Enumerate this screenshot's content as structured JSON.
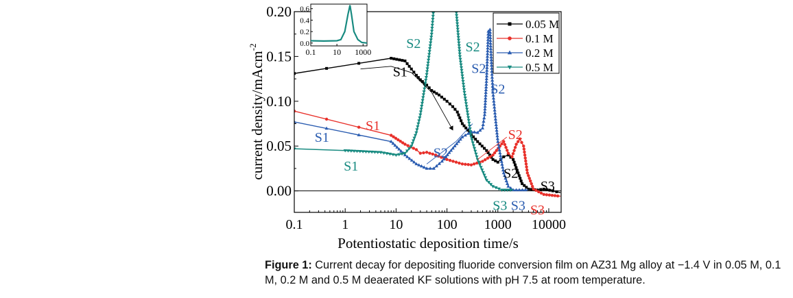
{
  "chart_data": {
    "type": "line",
    "xlabel": "Potentiostatic deposition time/s",
    "ylabel": "current density/mAcm",
    "ylabel_sup": "-2",
    "xscale": "log",
    "xlim": [
      0.1,
      17500
    ],
    "ylim": [
      -0.024,
      0.2
    ],
    "xticks": [
      0.1,
      1,
      10,
      100,
      1000,
      10000
    ],
    "xtick_labels": [
      "0.1",
      "1",
      "10",
      "100",
      "1000",
      "10000"
    ],
    "yticks": [
      0,
      0.05,
      0.1,
      0.15,
      0.2
    ],
    "ytick_labels": [
      "0.00",
      "0.05",
      "0.10",
      "0.15",
      "0.20"
    ],
    "zero_line": true,
    "legend_position": "top-right",
    "series": [
      {
        "name": "0.05 M",
        "color": "#000000",
        "marker": "square",
        "points": [
          [
            0.1,
            0.131
          ],
          [
            8,
            0.148
          ],
          [
            15,
            0.145
          ],
          [
            20,
            0.136
          ],
          [
            25,
            0.129
          ],
          [
            30,
            0.124
          ],
          [
            40,
            0.118
          ],
          [
            50,
            0.112
          ],
          [
            70,
            0.107
          ],
          [
            100,
            0.1
          ],
          [
            130,
            0.094
          ],
          [
            160,
            0.088
          ],
          [
            200,
            0.075
          ],
          [
            300,
            0.063
          ],
          [
            400,
            0.055
          ],
          [
            600,
            0.045
          ],
          [
            800,
            0.035
          ],
          [
            1000,
            0.032
          ],
          [
            1300,
            0.038
          ],
          [
            1600,
            0.04
          ],
          [
            2000,
            0.035
          ],
          [
            2500,
            0.02
          ],
          [
            3000,
            0.008
          ],
          [
            4000,
            0.002
          ],
          [
            6000,
            0.001
          ],
          [
            8000,
            0.002
          ],
          [
            12000,
            0.0
          ],
          [
            17000,
            -0.002
          ]
        ]
      },
      {
        "name": "0.1 M",
        "color": "#e8302a",
        "marker": "circle",
        "points": [
          [
            0.1,
            0.089
          ],
          [
            8,
            0.062
          ],
          [
            15,
            0.052
          ],
          [
            25,
            0.046
          ],
          [
            30,
            0.042
          ],
          [
            40,
            0.043
          ],
          [
            60,
            0.04
          ],
          [
            100,
            0.035
          ],
          [
            200,
            0.03
          ],
          [
            300,
            0.029
          ],
          [
            500,
            0.033
          ],
          [
            800,
            0.04
          ],
          [
            1100,
            0.05
          ],
          [
            1300,
            0.055
          ],
          [
            1600,
            0.042
          ],
          [
            1900,
            0.038
          ],
          [
            2300,
            0.052
          ],
          [
            2700,
            0.058
          ],
          [
            3200,
            0.05
          ],
          [
            3800,
            0.02
          ],
          [
            5000,
            0.002
          ],
          [
            8000,
            -0.004
          ],
          [
            17000,
            -0.006
          ]
        ]
      },
      {
        "name": "0.2 M",
        "color": "#2a5cb0",
        "marker": "triangle-up",
        "points": [
          [
            0.1,
            0.077
          ],
          [
            8,
            0.055
          ],
          [
            15,
            0.04
          ],
          [
            25,
            0.03
          ],
          [
            40,
            0.025
          ],
          [
            55,
            0.025
          ],
          [
            80,
            0.033
          ],
          [
            120,
            0.045
          ],
          [
            200,
            0.06
          ],
          [
            300,
            0.066
          ],
          [
            400,
            0.065
          ],
          [
            500,
            0.07
          ],
          [
            550,
            0.085
          ],
          [
            600,
            0.125
          ],
          [
            650,
            0.178
          ],
          [
            700,
            0.18
          ],
          [
            750,
            0.14
          ],
          [
            800,
            0.11
          ],
          [
            900,
            0.08
          ],
          [
            1000,
            0.055
          ],
          [
            1300,
            0.02
          ],
          [
            1600,
            0.005
          ],
          [
            2000,
            0.001
          ],
          [
            4000,
            0.001
          ]
        ]
      },
      {
        "name": "0.5 M",
        "color": "#178a80",
        "marker": "triangle-down",
        "points": [
          [
            0.1,
            0.047
          ],
          [
            1,
            0.045
          ],
          [
            5,
            0.043
          ],
          [
            10,
            0.04
          ],
          [
            15,
            0.042
          ],
          [
            20,
            0.05
          ],
          [
            25,
            0.065
          ],
          [
            30,
            0.085
          ],
          [
            40,
            0.13
          ],
          [
            50,
            0.175
          ],
          [
            55,
            0.205
          ],
          [
            150,
            0.205
          ],
          [
            180,
            0.15
          ],
          [
            220,
            0.11
          ],
          [
            300,
            0.06
          ],
          [
            400,
            0.035
          ],
          [
            600,
            0.012
          ],
          [
            800,
            0.005
          ],
          [
            1200,
            0.001
          ],
          [
            2000,
            0.001
          ]
        ]
      }
    ],
    "annotations": [
      {
        "text": "S1",
        "x": 12,
        "y": 0.133,
        "color": "#000000"
      },
      {
        "text": "S1",
        "x": 3.5,
        "y": 0.073,
        "color": "#e8302a"
      },
      {
        "text": "S1",
        "x": 0.35,
        "y": 0.06,
        "color": "#2a5cb0"
      },
      {
        "text": "S1",
        "x": 1.3,
        "y": 0.028,
        "color": "#178a80"
      },
      {
        "text": "S2",
        "x": 22,
        "y": 0.165,
        "color": "#178a80"
      },
      {
        "text": "S2",
        "x": 320,
        "y": 0.161,
        "color": "#178a80"
      },
      {
        "text": "S2",
        "x": 75,
        "y": 0.043,
        "color": "#2a5cb0"
      },
      {
        "text": "S2",
        "x": 420,
        "y": 0.137,
        "color": "#2a5cb0"
      },
      {
        "text": "S2",
        "x": 1000,
        "y": 0.114,
        "color": "#2a5cb0"
      },
      {
        "text": "S2",
        "x": 2200,
        "y": 0.063,
        "color": "#e8302a"
      },
      {
        "text": "S2",
        "x": 1800,
        "y": 0.02,
        "color": "#000000"
      },
      {
        "text": "S3",
        "x": 9500,
        "y": 0.006,
        "color": "#000000"
      },
      {
        "text": "S3",
        "x": 1100,
        "y": -0.016,
        "color": "#178a80"
      },
      {
        "text": "S3",
        "x": 2500,
        "y": -0.016,
        "color": "#2a5cb0"
      },
      {
        "text": "S3",
        "x": 6000,
        "y": -0.021,
        "color": "#e8302a"
      }
    ],
    "guide_lines": [
      {
        "color": "#000000",
        "arrow": true,
        "points": [
          [
            2,
            0.136
          ],
          [
            8,
            0.139
          ],
          [
            20,
            0.132
          ],
          [
            50,
            0.11
          ],
          [
            130,
            0.068
          ]
        ]
      },
      {
        "color": "#2a5cb0",
        "arrow": false,
        "points": [
          [
            40,
            0.03
          ],
          [
            150,
            0.055
          ],
          [
            320,
            0.075
          ]
        ]
      },
      {
        "color": "#e8302a",
        "arrow": false,
        "points": [
          [
            400,
            0.035
          ],
          [
            1500,
            0.06
          ]
        ]
      }
    ],
    "inset": {
      "xscale": "log",
      "xlim": [
        0.1,
        2000
      ],
      "ylim": [
        -0.05,
        0.68
      ],
      "xtick_labels": [
        "0.1",
        "10",
        "1000"
      ],
      "xticks": [
        0.1,
        10,
        1000
      ],
      "ytick_labels": [
        "0.0",
        "0.2",
        "0.4",
        "0.6"
      ],
      "yticks": [
        0,
        0.2,
        0.4,
        0.6
      ],
      "series": [
        {
          "color": "#178a80",
          "points": [
            [
              0.1,
              0.04
            ],
            [
              1,
              0.035
            ],
            [
              10,
              0.04
            ],
            [
              20,
              0.06
            ],
            [
              40,
              0.2
            ],
            [
              70,
              0.5
            ],
            [
              100,
              0.66
            ],
            [
              130,
              0.5
            ],
            [
              200,
              0.2
            ],
            [
              400,
              0.06
            ],
            [
              800,
              0.01
            ],
            [
              2000,
              0.0
            ]
          ]
        }
      ]
    }
  },
  "caption": {
    "label": "Figure 1:",
    "text": " Current decay for depositing fluoride conversion film on AZ31 Mg alloy at −1.4 V in 0.05 M, 0.1 M, 0.2 M and 0.5 M deaerated KF solutions with pH 7.5 at room temperature."
  }
}
